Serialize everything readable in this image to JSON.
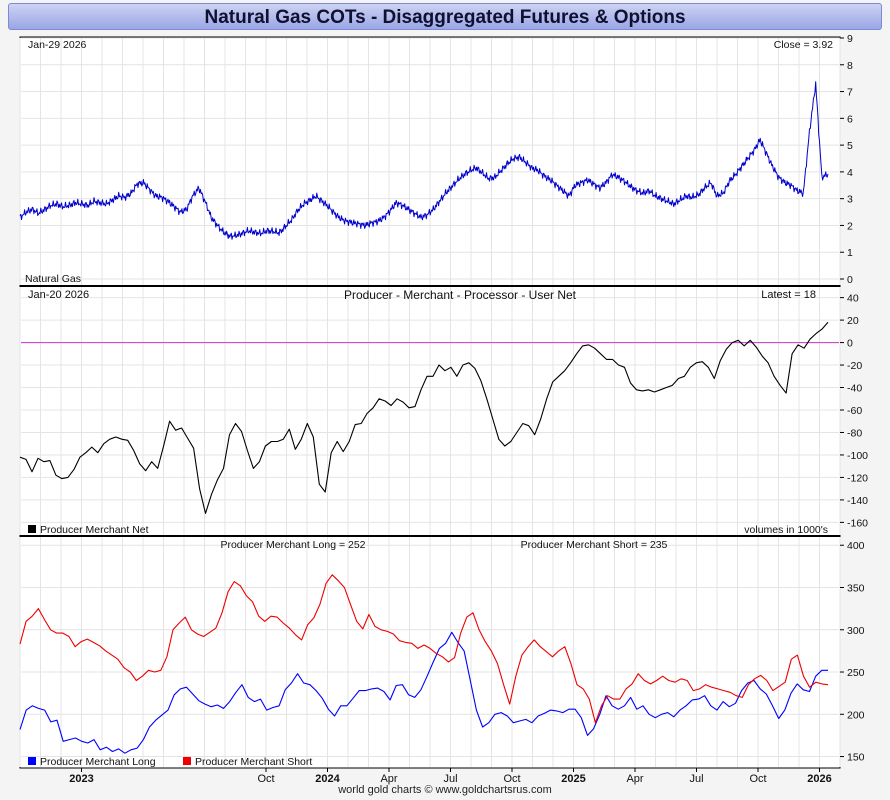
{
  "page_title": "Natural Gas COTs - Disaggregated Futures & Options",
  "footer": "world gold charts © www.goldchartsrus.com",
  "x_axis_labels": [
    "2023",
    "Oct",
    "2024",
    "Apr",
    "Jul",
    "Oct",
    "2025",
    "Apr",
    "Jul",
    "Oct",
    "2026"
  ],
  "colors": {
    "price_line": "#0000cc",
    "net_line": "#000000",
    "long_line": "#0000ff",
    "short_line": "#ee0000",
    "zero_line": "#cc33cc",
    "grid": "#e4e4e4"
  },
  "chart_data": [
    {
      "type": "line",
      "title": "Natural Gas",
      "date_label": "Jan-29  2026",
      "latest_label": "Close = 3.92",
      "ylim": [
        0,
        9
      ],
      "yticks": [
        "0",
        "1",
        "2",
        "3",
        "4",
        "5",
        "6",
        "7",
        "8",
        "9"
      ],
      "x_start": "2022-10",
      "x_end": "2026-02",
      "series": [
        {
          "name": "Natural Gas",
          "values": [
            2.3,
            2.5,
            2.6,
            2.45,
            2.6,
            2.75,
            2.8,
            2.7,
            2.75,
            2.85,
            2.8,
            2.75,
            2.9,
            2.85,
            2.8,
            2.95,
            3.1,
            3.05,
            3.2,
            3.55,
            3.6,
            3.35,
            3.1,
            3.05,
            2.9,
            2.7,
            2.5,
            2.6,
            3.1,
            3.4,
            2.9,
            2.3,
            2.0,
            1.75,
            1.6,
            1.62,
            1.7,
            1.8,
            1.75,
            1.7,
            1.8,
            1.78,
            1.72,
            1.95,
            2.2,
            2.55,
            2.8,
            2.95,
            3.1,
            2.9,
            2.7,
            2.45,
            2.25,
            2.15,
            2.1,
            2.05,
            2.0,
            2.1,
            2.15,
            2.3,
            2.55,
            2.85,
            2.75,
            2.6,
            2.45,
            2.3,
            2.4,
            2.6,
            2.9,
            3.2,
            3.45,
            3.7,
            3.9,
            4.05,
            4.15,
            3.95,
            3.75,
            3.8,
            4.05,
            4.3,
            4.5,
            4.55,
            4.35,
            4.15,
            4.05,
            3.85,
            3.7,
            3.5,
            3.3,
            3.1,
            3.5,
            3.6,
            3.7,
            3.55,
            3.4,
            3.6,
            3.9,
            3.8,
            3.65,
            3.45,
            3.3,
            3.2,
            3.3,
            3.1,
            3.0,
            2.9,
            2.8,
            2.95,
            3.1,
            3.05,
            3.15,
            3.4,
            3.6,
            3.1,
            3.2,
            3.65,
            3.9,
            4.2,
            4.5,
            4.8,
            5.2,
            4.7,
            4.2,
            3.8,
            3.6,
            3.5,
            3.3,
            3.2,
            5.5,
            7.3,
            3.8,
            3.92
          ]
        }
      ]
    },
    {
      "type": "line",
      "title": "Producer - Merchant - Processor - User Net",
      "date_label": "Jan-20  2026",
      "latest_label": "Latest = 18",
      "legend": "Producer Merchant Net",
      "units_label": "volumes in 1000's",
      "ylim": [
        -165,
        45
      ],
      "yticks": [
        "40",
        "20",
        "0",
        "-20",
        "-40",
        "-60",
        "-80",
        "-100",
        "-120",
        "-140",
        "-160"
      ],
      "zero_line": 0,
      "x_start": "2022-10",
      "x_end": "2026-02",
      "series": [
        {
          "name": "Producer Merchant Net",
          "values": [
            -102,
            -104,
            -115,
            -103,
            -106,
            -105,
            -118,
            -121,
            -120,
            -113,
            -102,
            -98,
            -93,
            -98,
            -90,
            -86,
            -84,
            -86,
            -87,
            -96,
            -108,
            -114,
            -106,
            -112,
            -92,
            -70,
            -78,
            -76,
            -85,
            -94,
            -130,
            -152,
            -135,
            -122,
            -112,
            -82,
            -72,
            -79,
            -96,
            -112,
            -106,
            -92,
            -88,
            -88,
            -86,
            -77,
            -95,
            -86,
            -72,
            -84,
            -126,
            -133,
            -98,
            -88,
            -97,
            -88,
            -73,
            -72,
            -63,
            -58,
            -50,
            -52,
            -56,
            -50,
            -53,
            -58,
            -57,
            -42,
            -30,
            -30,
            -20,
            -25,
            -22,
            -30,
            -20,
            -18,
            -23,
            -34,
            -50,
            -68,
            -86,
            -92,
            -88,
            -80,
            -72,
            -74,
            -82,
            -68,
            -50,
            -35,
            -30,
            -25,
            -18,
            -10,
            -3,
            -2,
            -5,
            -10,
            -15,
            -15,
            -20,
            -22,
            -36,
            -42,
            -43,
            -42,
            -44,
            -42,
            -40,
            -38,
            -32,
            -30,
            -22,
            -18,
            -17,
            -22,
            -32,
            -16,
            -6,
            0,
            2,
            -3,
            2,
            -4,
            -12,
            -18,
            -30,
            -38,
            -45,
            -10,
            -2,
            -5,
            3,
            8,
            12,
            18
          ]
        }
      ]
    },
    {
      "type": "line",
      "title": "Producer Merchant Long / Short",
      "long_label": "Producer Merchant Long = 252",
      "short_label": "Producer Merchant Short = 235",
      "ylim": [
        140,
        405
      ],
      "yticks": [
        "400",
        "350",
        "300",
        "250",
        "200",
        "150"
      ],
      "x_start": "2022-10",
      "x_end": "2026-02",
      "series": [
        {
          "name": "Producer Merchant Long",
          "values": [
            182,
            205,
            210,
            207,
            205,
            191,
            193,
            168,
            170,
            172,
            168,
            166,
            170,
            158,
            161,
            156,
            159,
            154,
            158,
            160,
            170,
            185,
            193,
            199,
            205,
            223,
            230,
            232,
            224,
            216,
            212,
            209,
            211,
            207,
            215,
            226,
            235,
            220,
            215,
            218,
            205,
            208,
            210,
            229,
            237,
            248,
            237,
            235,
            228,
            219,
            206,
            198,
            210,
            210,
            219,
            228,
            228,
            230,
            231,
            227,
            217,
            234,
            235,
            223,
            220,
            229,
            245,
            262,
            278,
            284,
            297,
            285,
            275,
            240,
            205,
            185,
            190,
            200,
            202,
            198,
            190,
            192,
            194,
            190,
            198,
            201,
            205,
            204,
            202,
            206,
            206,
            196,
            175,
            183,
            200,
            222,
            210,
            206,
            210,
            220,
            206,
            210,
            200,
            196,
            200,
            202,
            197,
            205,
            210,
            217,
            218,
            222,
            210,
            205,
            215,
            209,
            213,
            228,
            237,
            240,
            230,
            224,
            210,
            195,
            205,
            225,
            236,
            229,
            227,
            245,
            252,
            252
          ]
        },
        {
          "name": "Producer Merchant Short",
          "values": [
            283,
            310,
            316,
            325,
            312,
            300,
            296,
            296,
            292,
            280,
            286,
            289,
            285,
            281,
            275,
            270,
            265,
            255,
            250,
            240,
            245,
            252,
            250,
            252,
            268,
            300,
            308,
            315,
            300,
            295,
            292,
            297,
            302,
            320,
            345,
            357,
            352,
            340,
            333,
            316,
            310,
            316,
            315,
            308,
            302,
            294,
            288,
            306,
            314,
            330,
            355,
            365,
            358,
            350,
            330,
            310,
            301,
            318,
            304,
            300,
            298,
            295,
            287,
            285,
            284,
            278,
            282,
            278,
            272,
            268,
            262,
            267,
            296,
            315,
            320,
            300,
            286,
            275,
            260,
            235,
            212,
            245,
            270,
            280,
            288,
            280,
            274,
            268,
            275,
            280,
            260,
            235,
            230,
            218,
            190,
            210,
            222,
            218,
            218,
            230,
            236,
            248,
            240,
            236,
            240,
            245,
            240,
            238,
            242,
            240,
            228,
            230,
            235,
            232,
            230,
            228,
            226,
            222,
            220,
            235,
            242,
            246,
            240,
            228,
            233,
            238,
            265,
            270,
            245,
            232,
            238,
            236,
            235
          ]
        }
      ]
    }
  ]
}
